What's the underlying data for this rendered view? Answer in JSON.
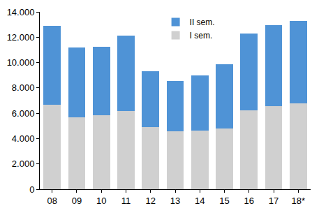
{
  "chart_data": {
    "type": "bar",
    "stacked": true,
    "grid": false,
    "legend": "top",
    "categories": [
      "08",
      "09",
      "10",
      "11",
      "12",
      "13",
      "14",
      "15",
      "16",
      "17",
      "18*"
    ],
    "series": [
      {
        "name": "I sem.",
        "color": "#d0d0d0",
        "values": [
          6650,
          5700,
          5850,
          6150,
          4900,
          4550,
          4650,
          4800,
          6250,
          6550,
          6800
        ]
      },
      {
        "name": "II sem.",
        "color": "#4f93d6",
        "values": [
          6250,
          5500,
          5400,
          5950,
          4400,
          4000,
          4350,
          5050,
          6050,
          6400,
          6500
        ]
      }
    ],
    "ylim": [
      0,
      14000
    ],
    "yticks": [
      0,
      {
        "value": 2000,
        "label": "2.000"
      },
      {
        "value": 4000,
        "label": "4.000"
      },
      {
        "value": 6000,
        "label": "6.000"
      },
      {
        "value": 8000,
        "label": "8.000"
      },
      {
        "value": 10000,
        "label": "10.000"
      },
      {
        "value": 12000,
        "label": "12.000"
      },
      {
        "value": 14000,
        "label": "14.000"
      }
    ]
  }
}
